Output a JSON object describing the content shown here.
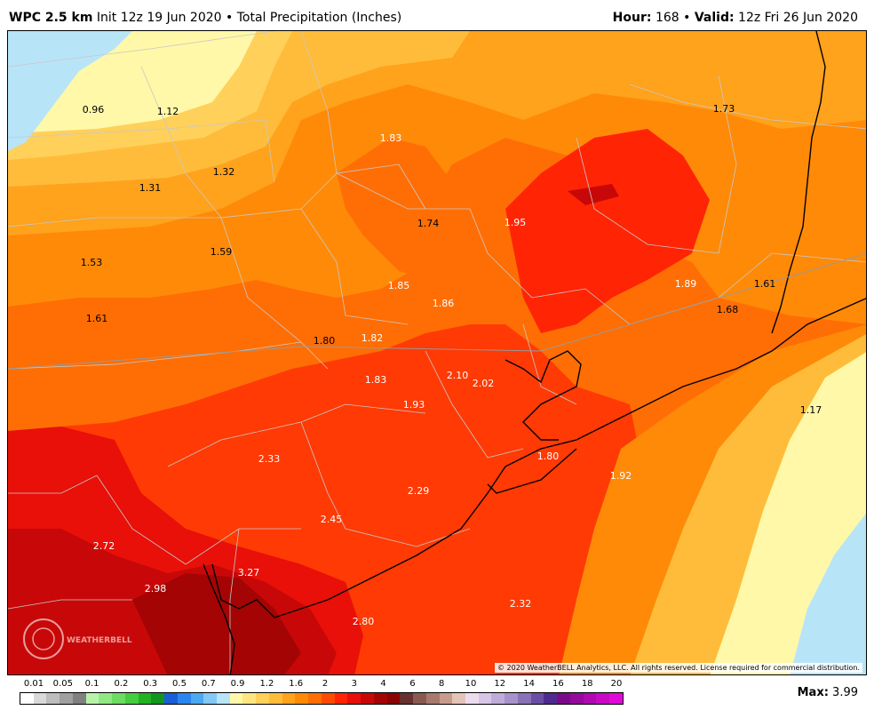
{
  "header": {
    "model": "WPC 2.5 km",
    "init": "Init 12z 19 Jun 2020",
    "sep": "•",
    "product": "Total Precipitation (Inches)",
    "hour_label": "Hour:",
    "hour_value": "168",
    "valid_label": "Valid:",
    "valid_value": "12z Fri 26 Jun 2020"
  },
  "map_labels": [
    {
      "text": "0.96",
      "tone": "dark"
    },
    {
      "text": "1.12",
      "tone": "dark"
    },
    {
      "text": "1.32",
      "tone": "dark"
    },
    {
      "text": "1.31",
      "tone": "dark"
    },
    {
      "text": "1.83",
      "tone": "light"
    },
    {
      "text": "1.73",
      "tone": "dark"
    },
    {
      "text": "1.74",
      "tone": "dark"
    },
    {
      "text": "1.95",
      "tone": "light"
    },
    {
      "text": "1.53",
      "tone": "dark"
    },
    {
      "text": "1.59",
      "tone": "dark"
    },
    {
      "text": "1.85",
      "tone": "light"
    },
    {
      "text": "1.89",
      "tone": "light"
    },
    {
      "text": "1.61",
      "tone": "dark"
    },
    {
      "text": "1.86",
      "tone": "light"
    },
    {
      "text": "1.68",
      "tone": "dark"
    },
    {
      "text": "1.61",
      "tone": "dark"
    },
    {
      "text": "1.80",
      "tone": "dark"
    },
    {
      "text": "1.82",
      "tone": "light"
    },
    {
      "text": "2.10",
      "tone": "light"
    },
    {
      "text": "2.02",
      "tone": "light"
    },
    {
      "text": "1.83",
      "tone": "light"
    },
    {
      "text": "1.93",
      "tone": "light"
    },
    {
      "text": "1.17",
      "tone": "dark"
    },
    {
      "text": "2.33",
      "tone": "light"
    },
    {
      "text": "1.80",
      "tone": "light"
    },
    {
      "text": "1.92",
      "tone": "light"
    },
    {
      "text": "2.29",
      "tone": "light"
    },
    {
      "text": "2.45",
      "tone": "light"
    },
    {
      "text": "2.72",
      "tone": "light"
    },
    {
      "text": "3.27",
      "tone": "light"
    },
    {
      "text": "2.98",
      "tone": "light"
    },
    {
      "text": "2.32",
      "tone": "light"
    },
    {
      "text": "2.80",
      "tone": "light"
    }
  ],
  "watermark": "WEATHERBELL",
  "copyright": "© 2020 WeatherBELL Analytics, LLC. All rights reserved. License required for commercial distribution.",
  "legend": {
    "labels": [
      "0.01",
      "0.05",
      "0.1",
      "0.2",
      "0.3",
      "0.5",
      "0.7",
      "0.9",
      "1.2",
      "1.6",
      "2",
      "3",
      "4",
      "6",
      "8",
      "10",
      "12",
      "14",
      "16",
      "18",
      "20"
    ],
    "colors": [
      "#ffffff",
      "#d9d9d9",
      "#bdbdbd",
      "#a0a0a0",
      "#808080",
      "#b8f2a8",
      "#90e884",
      "#6cdc62",
      "#46cc40",
      "#22b222",
      "#12961e",
      "#1a5ed8",
      "#2a86ee",
      "#4ca8f2",
      "#84c8f6",
      "#b8e4f8",
      "#fff8a8",
      "#ffe680",
      "#ffd05a",
      "#ffbc3a",
      "#ffa21c",
      "#ff8a08",
      "#ff6e04",
      "#ff4a04",
      "#ff2404",
      "#e81008",
      "#c80808",
      "#a40404",
      "#8a0404",
      "#683030",
      "#8a5a50",
      "#a87a6e",
      "#c89c8c",
      "#e4c4b8",
      "#ecdcec",
      "#d8c6e8",
      "#c0acd8",
      "#a892cc",
      "#8a72b8",
      "#6a4ea4",
      "#4e2a90",
      "#7a0a8a",
      "#940a9c",
      "#ae0ab0",
      "#c80ac4",
      "#e00ad8"
    ]
  },
  "max": {
    "label": "Max:",
    "value": "3.99"
  }
}
